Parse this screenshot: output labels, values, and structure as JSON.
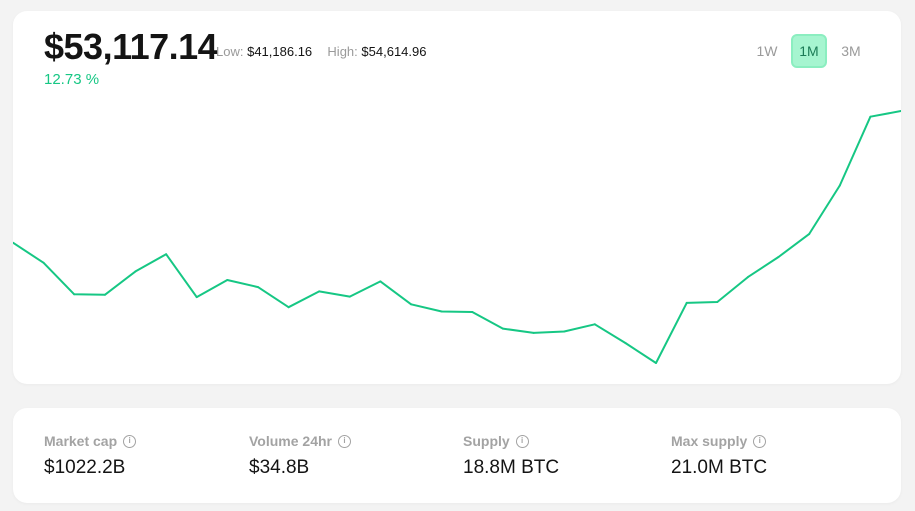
{
  "price": {
    "current": "$53,117.14",
    "low_label": "Low:",
    "low_value": "$41,186.16",
    "high_label": "High:",
    "high_value": "$54,614.96",
    "change": "12.73 %"
  },
  "timeframes": {
    "options": [
      "1W",
      "1M",
      "3M"
    ],
    "selected": "1M"
  },
  "chart_data": {
    "type": "line",
    "series": [
      {
        "values": [
          45200,
          44500,
          43400,
          43380,
          44200,
          44800,
          43300,
          43900,
          43650,
          42950,
          43500,
          43320,
          43850,
          43050,
          42800,
          42780,
          42200,
          42050,
          42100,
          42350,
          41700,
          41000,
          43100,
          43130,
          44000,
          44700,
          45500,
          47200,
          49600,
          49800
        ]
      }
    ],
    "grid": false,
    "line_color": "#16c784"
  },
  "stats": [
    {
      "label": "Market cap",
      "value": "$1022.2B",
      "icon": "info-icon"
    },
    {
      "label": "Volume 24hr",
      "value": "$34.8B",
      "icon": "info-icon"
    },
    {
      "label": "Supply",
      "value": "18.8M BTC",
      "icon": "info-icon"
    },
    {
      "label": "Max supply",
      "value": "21.0M BTC",
      "icon": "info-icon"
    }
  ],
  "colors": {
    "accent": "#16c784",
    "active_tab_bg": "#a6f5d0",
    "muted_text": "#9a9a9a"
  }
}
